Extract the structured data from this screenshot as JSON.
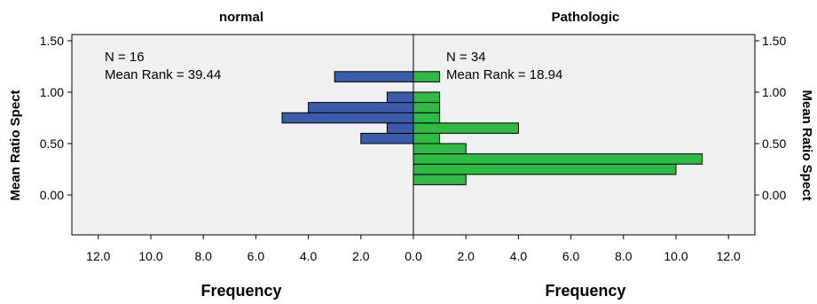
{
  "colors": {
    "background": "#f0f0f0",
    "normal_bar": "#3b5bab",
    "pathologic_bar": "#2fba45",
    "bar_outline": "#000000"
  },
  "chart_data": {
    "type": "population-pyramid-histogram",
    "ylabel": "Mean Ratio Spect",
    "ylim": [
      -0.35,
      1.55
    ],
    "y_ticks": [
      "0.00",
      "0.50",
      "1.00",
      "1.50"
    ],
    "x_ticks": [
      "0.0",
      "2.0",
      "4.0",
      "6.0",
      "8.0",
      "10.0",
      "12.0"
    ],
    "xlim": [
      0,
      13
    ],
    "bin_width": 0.1,
    "panels": [
      {
        "title": "normal",
        "xlabel": "Frequency",
        "direction": "left",
        "annotation": [
          "N = 16",
          "Mean Rank = 39.44"
        ],
        "bins": [
          {
            "y": 0.55,
            "value": 2
          },
          {
            "y": 0.65,
            "value": 1
          },
          {
            "y": 0.75,
            "value": 5
          },
          {
            "y": 0.85,
            "value": 4
          },
          {
            "y": 0.95,
            "value": 1
          },
          {
            "y": 1.15,
            "value": 3
          }
        ]
      },
      {
        "title": "Pathologic",
        "xlabel": "Frequency",
        "direction": "right",
        "annotation": [
          "N = 34",
          "Mean Rank = 18.94"
        ],
        "bins": [
          {
            "y": 0.15,
            "value": 2
          },
          {
            "y": 0.25,
            "value": 10
          },
          {
            "y": 0.35,
            "value": 11
          },
          {
            "y": 0.45,
            "value": 2
          },
          {
            "y": 0.55,
            "value": 1
          },
          {
            "y": 0.65,
            "value": 4
          },
          {
            "y": 0.75,
            "value": 1
          },
          {
            "y": 0.85,
            "value": 1
          },
          {
            "y": 0.95,
            "value": 1
          },
          {
            "y": 1.15,
            "value": 1
          }
        ]
      }
    ]
  }
}
